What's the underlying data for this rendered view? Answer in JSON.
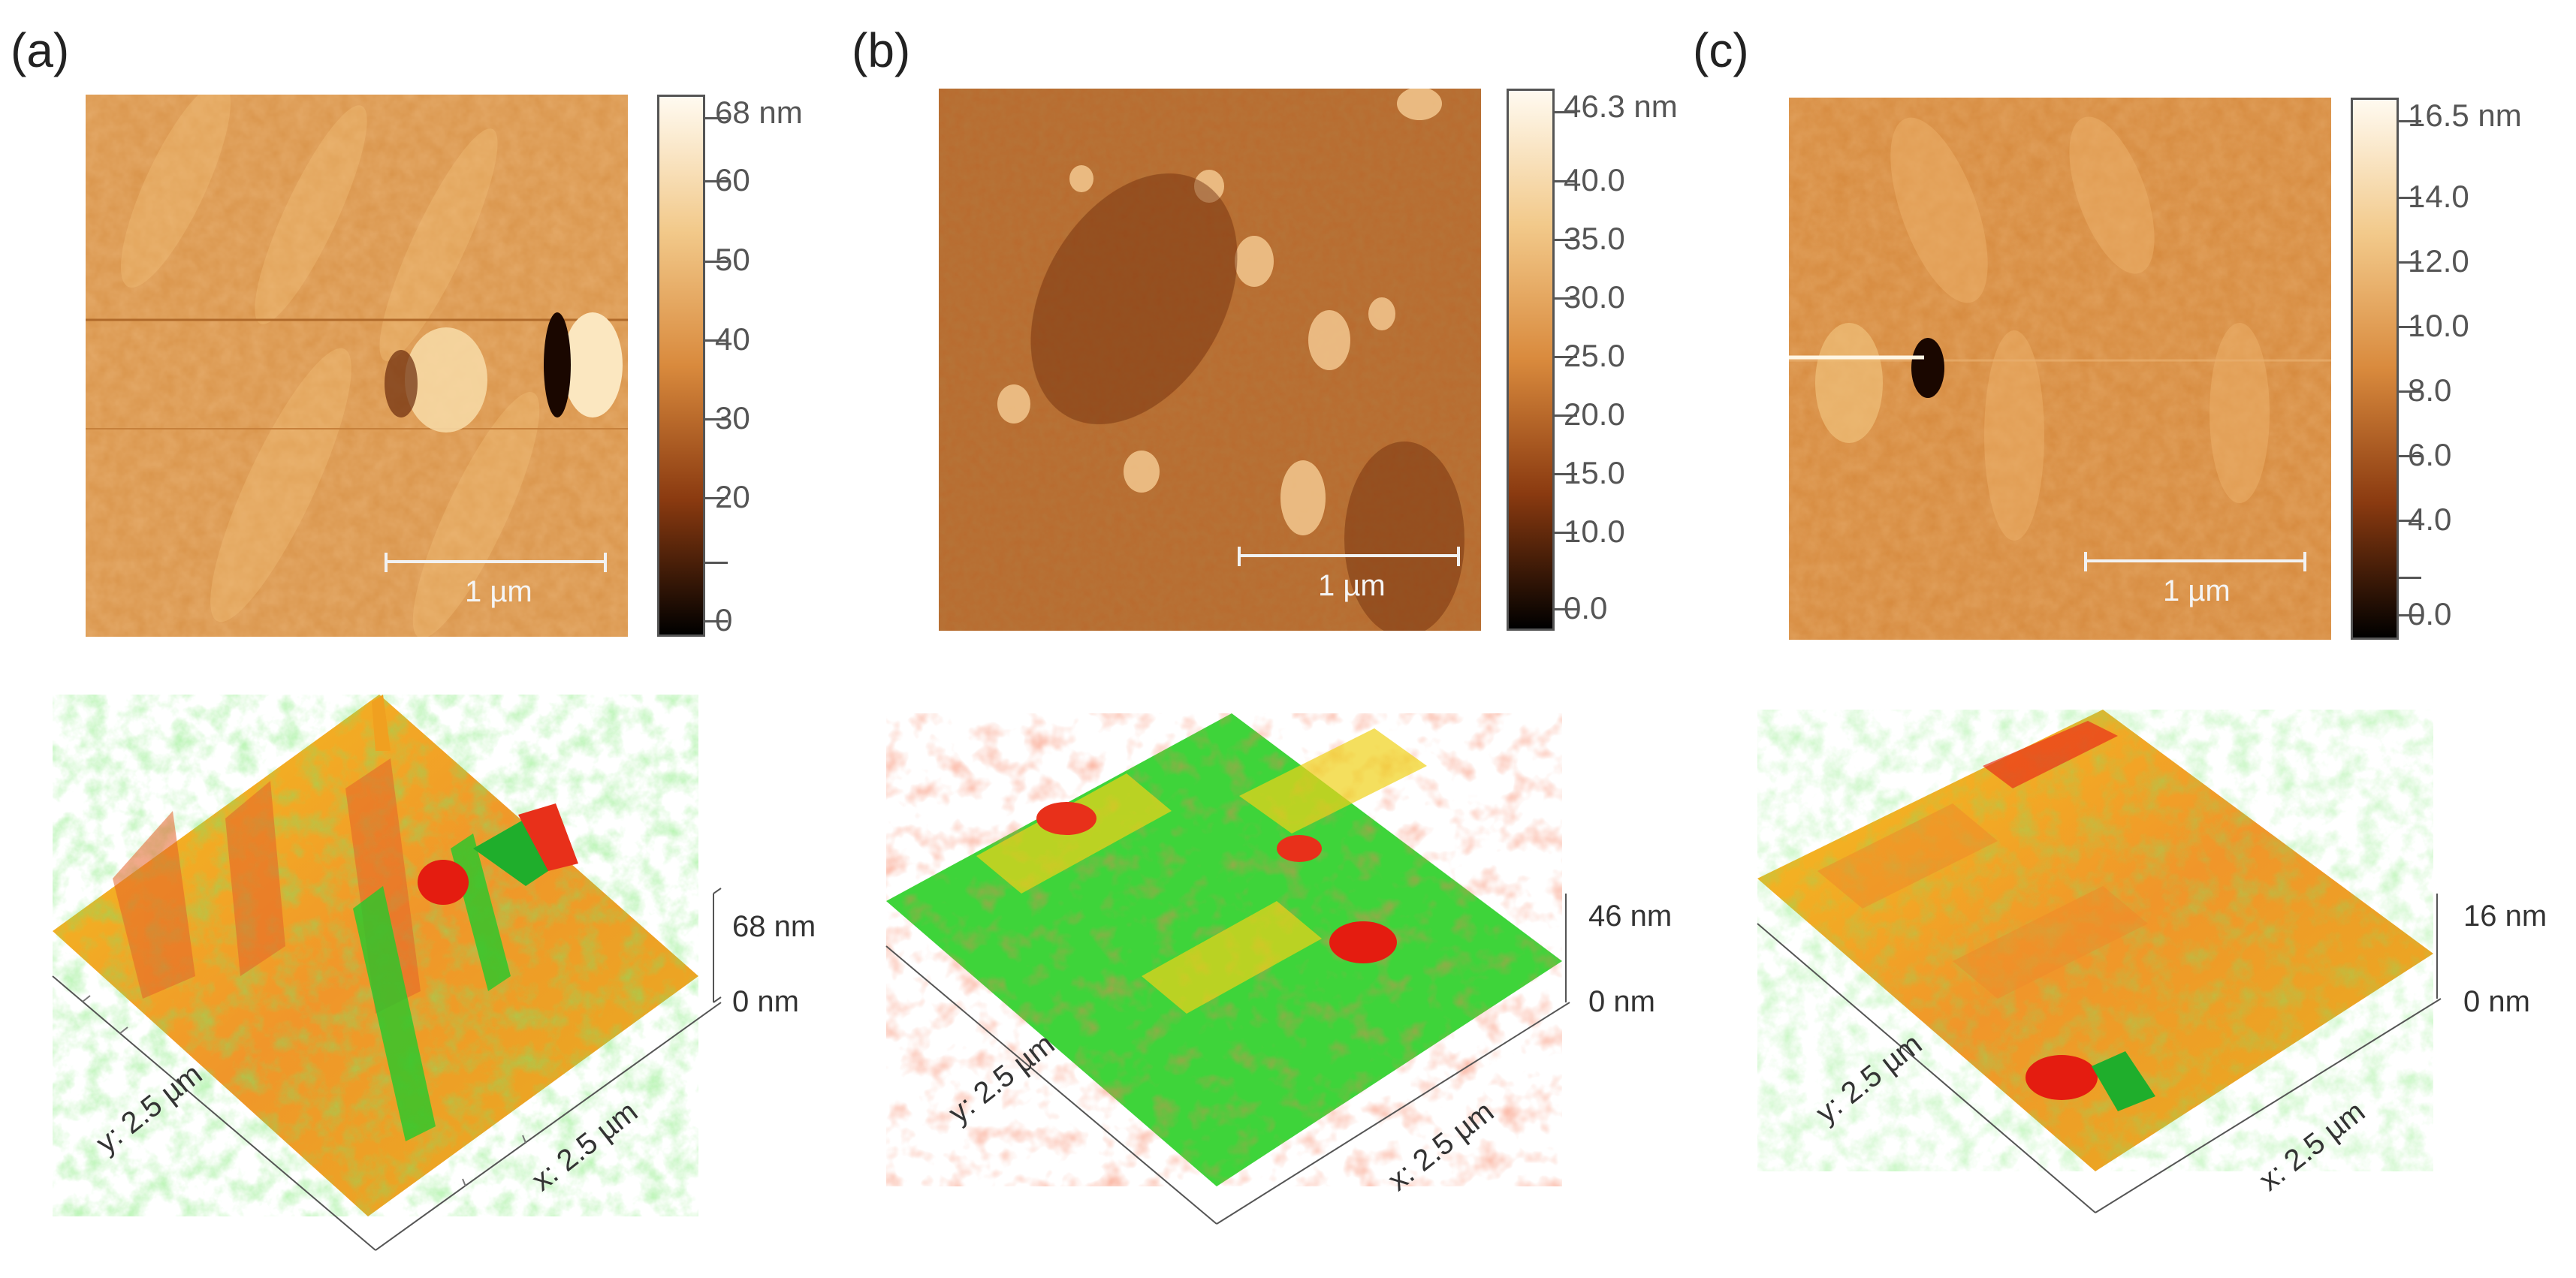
{
  "panels": [
    {
      "label": "(a)",
      "scalebar": "1 µm",
      "colorbar": [
        "68 nm",
        "60",
        "50",
        "40",
        "30",
        "20",
        "0"
      ],
      "z_top": "68 nm",
      "z_bottom": "0 nm",
      "x_axis": "x: 2.5 µm",
      "y_axis": "y: 2.5 µm"
    },
    {
      "label": "(b)",
      "scalebar": "1 µm",
      "colorbar": [
        "46.3 nm",
        "40.0",
        "35.0",
        "30.0",
        "25.0",
        "20.0",
        "15.0",
        "10.0",
        "0.0"
      ],
      "z_top": "46 nm",
      "z_bottom": "0 nm",
      "x_axis": "x: 2.5 µm",
      "y_axis": "y: 2.5 µm"
    },
    {
      "label": "(c)",
      "scalebar": "1 µm",
      "colorbar": [
        "16.5 nm",
        "14.0",
        "12.0",
        "10.0",
        "8.0",
        "6.0",
        "4.0",
        "0.0"
      ],
      "z_top": "16 nm",
      "z_bottom": "0 nm",
      "x_axis": "x: 2.5 µm",
      "y_axis": "y: 2.5 µm"
    }
  ],
  "colors": {
    "afm_light": "#fff6e4",
    "afm_mid": "#d7883f",
    "afm_dark": "#000000",
    "surface_red": "#e8301a",
    "surface_yellow": "#f0d21a",
    "surface_green": "#2fd02a"
  }
}
